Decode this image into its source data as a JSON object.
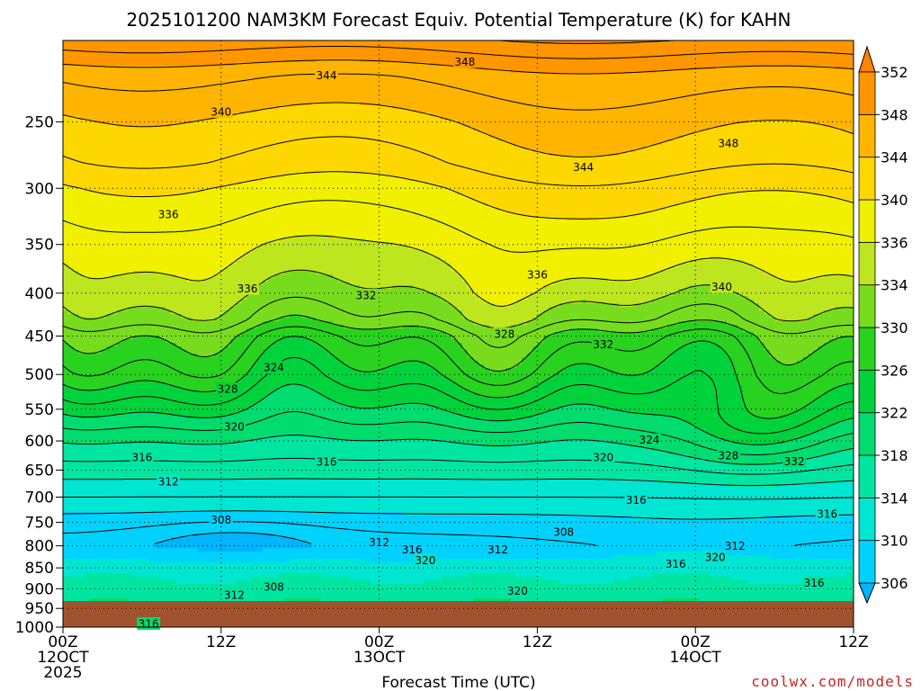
{
  "chart_data": {
    "type": "heatmap",
    "title": "2025101200 NAM3KM Forecast Equiv. Potential Temperature (K) for KAHN",
    "xlabel": "Forecast Time (UTC)",
    "ylabel": "",
    "x_ticks": [
      {
        "value": 0,
        "line1": "00Z",
        "line2": "12OCT",
        "line3": "2025"
      },
      {
        "value": 12,
        "line1": "12Z",
        "line2": "",
        "line3": ""
      },
      {
        "value": 24,
        "line1": "00Z",
        "line2": "13OCT",
        "line3": ""
      },
      {
        "value": 36,
        "line1": "12Z",
        "line2": "",
        "line3": ""
      },
      {
        "value": 48,
        "line1": "00Z",
        "line2": "14OCT",
        "line3": ""
      },
      {
        "value": 60,
        "line1": "12Z",
        "line2": "",
        "line3": ""
      }
    ],
    "x_range_hours": [
      0,
      60
    ],
    "y_axis": {
      "units": "hPa",
      "scale": "log-pressure",
      "reversed": true,
      "range": [
        200,
        1000
      ],
      "ticks": [
        250,
        300,
        350,
        400,
        450,
        500,
        550,
        600,
        650,
        700,
        750,
        800,
        850,
        900,
        950,
        1000
      ]
    },
    "colorbar": {
      "levels": [
        306,
        310,
        314,
        318,
        322,
        326,
        330,
        334,
        336,
        340,
        344,
        348,
        352
      ],
      "labels": [
        "306",
        "310",
        "314",
        "318",
        "322",
        "326",
        "330",
        "334",
        "336",
        "340",
        "344",
        "348",
        "352"
      ],
      "colors": [
        "#00b4ff",
        "#00d2ff",
        "#00e6d2",
        "#00e6a0",
        "#00dc6e",
        "#00d23c",
        "#28d21e",
        "#78dc1e",
        "#bee61e",
        "#f0f000",
        "#ffd700",
        "#ffb400",
        "#ff9600",
        "#ff8200"
      ]
    },
    "grid": true,
    "terrain_color": "#a0522d",
    "profile": [
      {
        "p": 200,
        "theta": 351
      },
      {
        "p": 220,
        "theta": 346
      },
      {
        "p": 250,
        "theta": 343
      },
      {
        "p": 280,
        "theta": 341
      },
      {
        "p": 300,
        "theta": 339
      },
      {
        "p": 350,
        "theta": 336
      },
      {
        "p": 400,
        "theta": 334
      },
      {
        "p": 430,
        "theta": 332
      },
      {
        "p": 450,
        "theta": 329
      },
      {
        "p": 500,
        "theta": 326
      },
      {
        "p": 550,
        "theta": 322
      },
      {
        "p": 600,
        "theta": 318
      },
      {
        "p": 650,
        "theta": 315
      },
      {
        "p": 700,
        "theta": 312
      },
      {
        "p": 750,
        "theta": 309
      },
      {
        "p": 800,
        "theta": 307
      },
      {
        "p": 850,
        "theta": 312
      },
      {
        "p": 900,
        "theta": 316
      },
      {
        "p": 950,
        "theta": 318
      },
      {
        "p": 1000,
        "theta": 319
      }
    ],
    "contour_labels": [
      {
        "text": "348",
        "hour": 30.5,
        "p": 212
      },
      {
        "text": "344",
        "hour": 20,
        "p": 220
      },
      {
        "text": "340",
        "hour": 12,
        "p": 243
      },
      {
        "text": "348",
        "hour": 50.5,
        "p": 265
      },
      {
        "text": "344",
        "hour": 39.5,
        "p": 283
      },
      {
        "text": "336",
        "hour": 8,
        "p": 322
      },
      {
        "text": "336",
        "hour": 36,
        "p": 380
      },
      {
        "text": "340",
        "hour": 50,
        "p": 393
      },
      {
        "text": "336",
        "hour": 14,
        "p": 395
      },
      {
        "text": "332",
        "hour": 23,
        "p": 402
      },
      {
        "text": "328",
        "hour": 33.5,
        "p": 447
      },
      {
        "text": "332",
        "hour": 41,
        "p": 460
      },
      {
        "text": "324",
        "hour": 16,
        "p": 490
      },
      {
        "text": "328",
        "hour": 12.5,
        "p": 520
      },
      {
        "text": "320",
        "hour": 13,
        "p": 577
      },
      {
        "text": "324",
        "hour": 44.5,
        "p": 598
      },
      {
        "text": "328",
        "hour": 50.5,
        "p": 624
      },
      {
        "text": "332",
        "hour": 55.5,
        "p": 634
      },
      {
        "text": "316",
        "hour": 6,
        "p": 627
      },
      {
        "text": "316",
        "hour": 20,
        "p": 635
      },
      {
        "text": "320",
        "hour": 41,
        "p": 627
      },
      {
        "text": "312",
        "hour": 8,
        "p": 670
      },
      {
        "text": "316",
        "hour": 43.5,
        "p": 705
      },
      {
        "text": "316",
        "hour": 58,
        "p": 733
      },
      {
        "text": "308",
        "hour": 12,
        "p": 745
      },
      {
        "text": "308",
        "hour": 38,
        "p": 770
      },
      {
        "text": "312",
        "hour": 24,
        "p": 792
      },
      {
        "text": "316",
        "hour": 26.5,
        "p": 808
      },
      {
        "text": "312",
        "hour": 33,
        "p": 808
      },
      {
        "text": "312",
        "hour": 51,
        "p": 800
      },
      {
        "text": "320",
        "hour": 27.5,
        "p": 832
      },
      {
        "text": "320",
        "hour": 49.5,
        "p": 825
      },
      {
        "text": "316",
        "hour": 46.5,
        "p": 840
      },
      {
        "text": "308",
        "hour": 16,
        "p": 895
      },
      {
        "text": "312",
        "hour": 13,
        "p": 915
      },
      {
        "text": "320",
        "hour": 34.5,
        "p": 905
      },
      {
        "text": "316",
        "hour": 57,
        "p": 885
      },
      {
        "text": "316",
        "hour": 6.5,
        "p": 990
      }
    ]
  },
  "credit": "coolwx.com/models"
}
